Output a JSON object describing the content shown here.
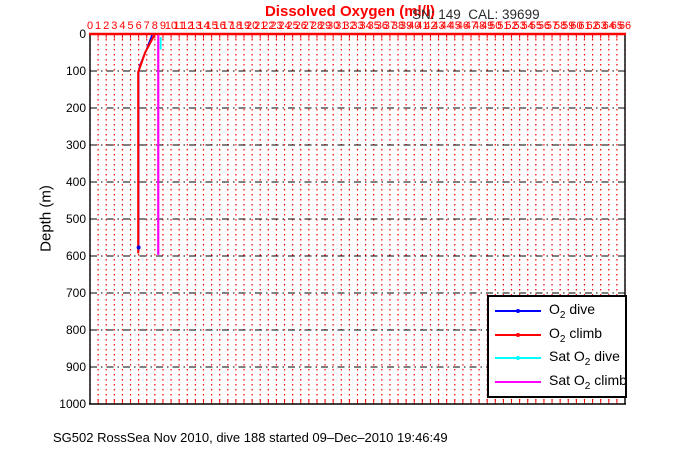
{
  "header": {
    "title": "Dissolved Oxygen (ml/l)",
    "title_color": "#ff0000",
    "sn_cal": "SN: 149  CAL: 39699"
  },
  "footer": {
    "caption": "SG502 RossSea Nov 2010, dive 188 started 09–Dec–2010 19:46:49"
  },
  "chart_data": {
    "type": "line",
    "title": "Dissolved Oxygen (ml/l)",
    "ylabel": "Depth (m)",
    "x_axis_location": "top",
    "y_inverted": true,
    "xlim": [
      0,
      66
    ],
    "ylim": [
      0,
      1000
    ],
    "x_ticks": [
      0,
      1,
      2,
      3,
      4,
      5,
      6,
      7,
      8,
      9,
      10,
      11,
      12,
      13,
      14,
      15,
      16,
      17,
      18,
      19,
      20,
      21,
      22,
      23,
      24,
      25,
      26,
      27,
      28,
      29,
      30,
      31,
      32,
      33,
      34,
      35,
      36,
      37,
      38,
      39,
      40,
      41,
      42,
      43,
      44,
      45,
      46,
      47,
      48,
      49,
      50,
      51,
      52,
      53,
      54,
      55,
      56,
      57,
      58,
      59,
      60,
      61,
      62,
      63,
      64,
      65,
      66
    ],
    "y_ticks": [
      0,
      100,
      200,
      300,
      400,
      500,
      600,
      700,
      800,
      900,
      1000
    ],
    "grid": {
      "vertical_color": "#ff0000",
      "vertical_style": "dotted",
      "horizontal_color": "#000000",
      "horizontal_style": "dash-dot"
    },
    "axis_colors": {
      "top": "#ff0000",
      "left": "#000000",
      "bottom": "#000000",
      "right": "#000000"
    },
    "series": [
      {
        "name": "O2 dive",
        "color": "#0000ff",
        "width": 1.6,
        "points": [
          [
            7.65,
            3
          ],
          [
            7.0,
            40
          ],
          [
            6.15,
            85
          ],
          [
            6.0,
            100
          ],
          [
            6.0,
            587
          ]
        ]
      },
      {
        "name": "O2 climb",
        "color": "#ff0000",
        "width": 2.1,
        "points": [
          [
            7.98,
            1
          ],
          [
            6.8,
            50
          ],
          [
            5.95,
            103
          ],
          [
            5.95,
            593
          ]
        ]
      },
      {
        "name": "Sat O2 dive",
        "color": "#00ffff",
        "width": 1.8,
        "points": [
          [
            8.72,
            8
          ],
          [
            8.72,
            42
          ]
        ]
      },
      {
        "name": "Sat O2 climb",
        "color": "#ff00ff",
        "width": 2.2,
        "points": [
          [
            8.42,
            2
          ],
          [
            8.42,
            597
          ]
        ]
      }
    ],
    "end_marker": {
      "series": "O2 dive",
      "color": "#0000dd",
      "point": [
        6.0,
        577
      ]
    }
  },
  "legend": {
    "items": [
      {
        "prefix": "O",
        "sub": "2",
        "suffix": " dive",
        "color": "#0000ff",
        "marker": true
      },
      {
        "prefix": "O",
        "sub": "2",
        "suffix": " climb",
        "color": "#ff0000",
        "marker": true
      },
      {
        "prefix": "Sat O",
        "sub": "2",
        "suffix": " dive",
        "color": "#00ffff",
        "marker": true
      },
      {
        "prefix": "Sat O",
        "sub": "2",
        "suffix": " climb",
        "color": "#ff00ff",
        "marker": false
      }
    ]
  }
}
